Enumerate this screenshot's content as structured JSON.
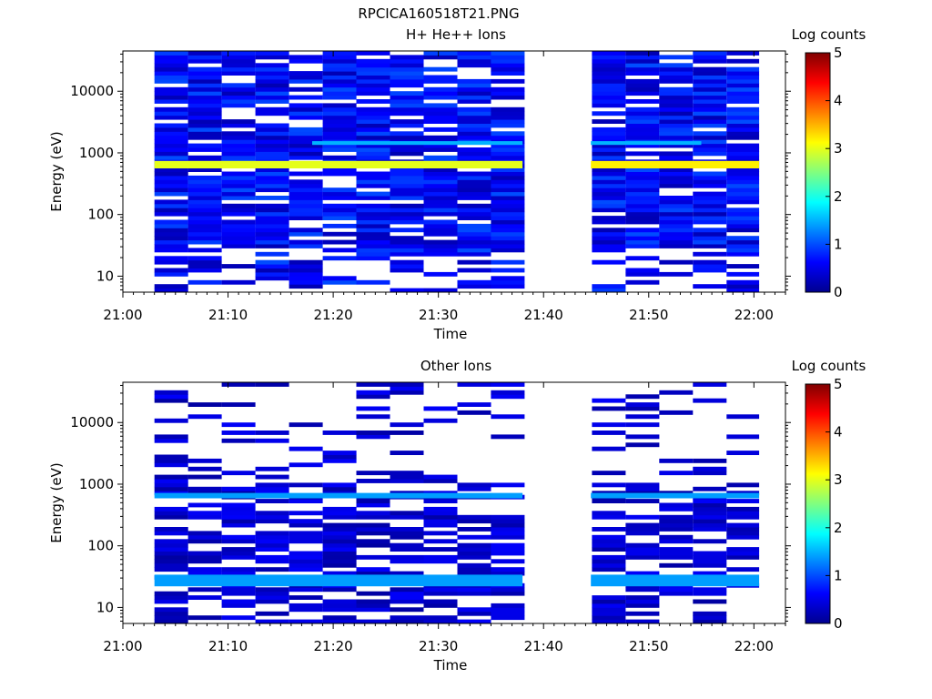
{
  "figure_title": "RPCICA160518T21.PNG",
  "chart_data": [
    {
      "type": "heatmap",
      "title": "H+ He++ Ions",
      "xlabel": "Time",
      "ylabel": "Energy (eV)",
      "x_ticks": [
        "21:00",
        "21:10",
        "21:20",
        "21:30",
        "21:40",
        "21:50",
        "22:00"
      ],
      "y_ticks": [
        "10",
        "100",
        "1000",
        "10000"
      ],
      "y_scale": "log",
      "ylim": [
        5.5,
        45000
      ],
      "xlim_minutes": [
        0,
        63
      ],
      "data_gaps_minutes": [
        [
          0,
          3.0
        ],
        [
          38.0,
          44.5
        ],
        [
          60.5,
          63
        ]
      ],
      "colorbar": {
        "label": "Log counts",
        "ticks": [
          "0",
          "1",
          "2",
          "3",
          "4",
          "5"
        ],
        "range": [
          0,
          5
        ]
      },
      "bands": [
        {
          "energy_range": [
            560,
            740
          ],
          "log_counts_approx": 3.0,
          "x_range_minutes": [
            3.0,
            38.0
          ]
        },
        {
          "energy_range": [
            560,
            740
          ],
          "log_counts_approx": 3.2,
          "x_range_minutes": [
            44.5,
            60.5
          ]
        },
        {
          "energy_range": [
            1350,
            1550
          ],
          "log_counts_approx": 1.5,
          "x_range_minutes": [
            18.0,
            38.0
          ]
        },
        {
          "energy_range": [
            1350,
            1550
          ],
          "log_counts_approx": 1.5,
          "x_range_minutes": [
            44.5,
            55.0
          ]
        }
      ],
      "background_log_counts_approx": [
        0.2,
        1.0
      ]
    },
    {
      "type": "heatmap",
      "title": "Other Ions",
      "xlabel": "Time",
      "ylabel": "Energy (eV)",
      "x_ticks": [
        "21:00",
        "21:10",
        "21:20",
        "21:30",
        "21:40",
        "21:50",
        "22:00"
      ],
      "y_ticks": [
        "10",
        "100",
        "1000",
        "10000"
      ],
      "y_scale": "log",
      "ylim": [
        5.5,
        45000
      ],
      "xlim_minutes": [
        0,
        63
      ],
      "data_gaps_minutes": [
        [
          0,
          3.0
        ],
        [
          38.0,
          44.5
        ],
        [
          60.5,
          63
        ]
      ],
      "colorbar": {
        "label": "Log counts",
        "ticks": [
          "0",
          "1",
          "2",
          "3",
          "4",
          "5"
        ],
        "range": [
          0,
          5
        ]
      },
      "bands": [
        {
          "energy_range": [
            590,
            720
          ],
          "log_counts_approx": 1.4,
          "x_range_minutes": [
            3.0,
            38.0
          ]
        },
        {
          "energy_range": [
            590,
            720
          ],
          "log_counts_approx": 1.4,
          "x_range_minutes": [
            44.5,
            60.5
          ]
        },
        {
          "energy_range": [
            22,
            34
          ],
          "log_counts_approx": 1.4,
          "x_range_minutes": [
            3.0,
            38.0
          ]
        },
        {
          "energy_range": [
            22,
            34
          ],
          "log_counts_approx": 1.4,
          "x_range_minutes": [
            44.5,
            60.5
          ]
        }
      ],
      "background_log_counts_approx": [
        0.1,
        0.6
      ]
    }
  ]
}
